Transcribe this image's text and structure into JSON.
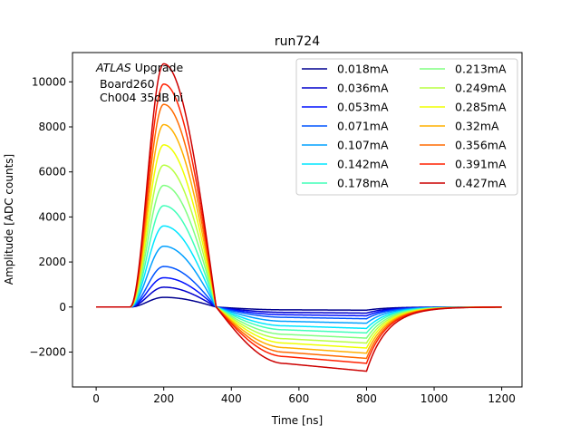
{
  "chart_data": {
    "type": "line",
    "title": "run724",
    "xlabel": "Time [ns]",
    "ylabel": "Amplitude [ADC counts]",
    "xlim": [
      -70,
      1260
    ],
    "ylim": [
      -3550,
      11300
    ],
    "xticks": [
      0,
      200,
      400,
      600,
      800,
      1000,
      1200
    ],
    "yticks": [
      -2000,
      0,
      2000,
      4000,
      6000,
      8000,
      10000
    ],
    "xtick_labels": [
      "0",
      "200",
      "400",
      "600",
      "800",
      "1000",
      "1200"
    ],
    "ytick_labels": [
      "−2000",
      "0",
      "2000",
      "4000",
      "6000",
      "8000",
      "10000"
    ],
    "grid": false,
    "legend": {
      "placement": "top-right",
      "columns": 2
    },
    "annotation": {
      "italic": "ATLAS",
      "rest": " Upgrade",
      "line2": " Board260",
      "line3": " Ch004 35dB hi"
    },
    "pulse_shape": {
      "description_free": true,
      "x_start": 0,
      "x_end": 1200,
      "peak_time": 200,
      "zero_crossing_time": 355,
      "undershoot_plateau": [
        580,
        800
      ],
      "return_time": 1000
    },
    "series": [
      {
        "name": "0.018mA",
        "color": "#00008f",
        "peak": 430,
        "undershoot": -140
      },
      {
        "name": "0.036mA",
        "color": "#0000cc",
        "peak": 880,
        "undershoot": -270
      },
      {
        "name": "0.053mA",
        "color": "#0010ff",
        "peak": 1300,
        "undershoot": -390
      },
      {
        "name": "0.071mA",
        "color": "#0055ff",
        "peak": 1800,
        "undershoot": -520
      },
      {
        "name": "0.107mA",
        "color": "#00a0ff",
        "peak": 2700,
        "undershoot": -720
      },
      {
        "name": "0.142mA",
        "color": "#00e6ff",
        "peak": 3600,
        "undershoot": -950
      },
      {
        "name": "0.178mA",
        "color": "#40ffb8",
        "peak": 4500,
        "undershoot": -1150
      },
      {
        "name": "0.213mA",
        "color": "#80ff80",
        "peak": 5400,
        "undershoot": -1380
      },
      {
        "name": "0.249mA",
        "color": "#b8ff40",
        "peak": 6300,
        "undershoot": -1600
      },
      {
        "name": "0.285mA",
        "color": "#f0ff00",
        "peak": 7200,
        "undershoot": -1820
      },
      {
        "name": "0.32mA",
        "color": "#ffb000",
        "peak": 8100,
        "undershoot": -2050
      },
      {
        "name": "0.356mA",
        "color": "#ff6a00",
        "peak": 9000,
        "undershoot": -2280
      },
      {
        "name": "0.391mA",
        "color": "#ff2000",
        "peak": 9900,
        "undershoot": -2500
      },
      {
        "name": "0.427mA",
        "color": "#cc0000",
        "peak": 10800,
        "undershoot": -2850
      }
    ]
  }
}
